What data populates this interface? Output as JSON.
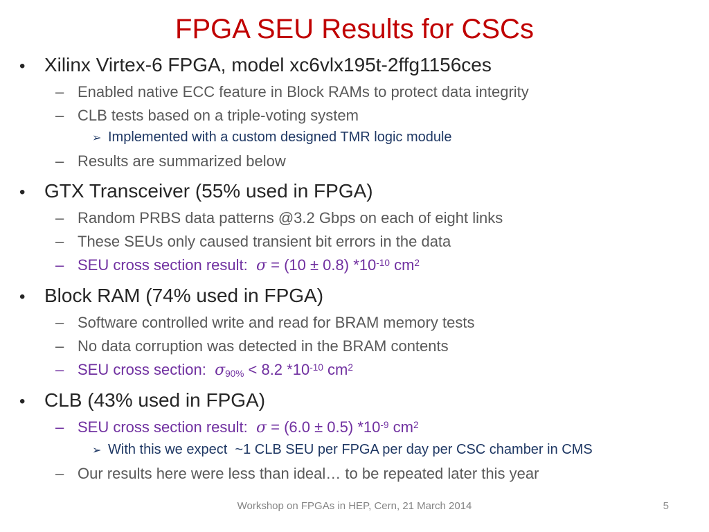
{
  "slide": {
    "title": "FPGA SEU Results for CSCs",
    "footer": {
      "text": "Workshop on FPGAs in HEP, Cern, 21 March 2014",
      "page_number": "5"
    },
    "colors": {
      "title": "#C00000",
      "level1_text": "#262626",
      "level2_text": "#595959",
      "level3_text": "#1F3864",
      "result_purple": "#7030A0",
      "footer_gray": "#848484"
    }
  },
  "markers": {
    "level1": "•",
    "level2": "–",
    "level3": "➢"
  },
  "content": {
    "section1": {
      "heading": "Xilinx Virtex-6 FPGA, model xc6vlx195t-2ffg1156ces",
      "item1": "Enabled native ECC feature in Block RAMs to protect data integrity",
      "item2": "CLB tests based on a triple-voting system",
      "sub1": "Implemented with a custom designed TMR logic module",
      "item3": "Results are summarized below"
    },
    "section2": {
      "heading": "GTX Transceiver (55% used in FPGA)",
      "item1": "Random PRBS data patterns @3.2 Gbps on each of eight links",
      "item2": "These SEUs only caused transient bit errors in the data",
      "result": {
        "label": "SEU cross section result:  ",
        "sigma": "σ",
        "rest": " = (10 ± 0.8) *10",
        "exp": "-10",
        "unit": " cm",
        "unit_exp": "2"
      }
    },
    "section3": {
      "heading": "Block RAM (74% used in FPGA)",
      "item1": "Software controlled write and read for BRAM memory tests",
      "item2": "No data corruption was detected in the BRAM contents",
      "result": {
        "label": "SEU cross section:  ",
        "sigma": "σ",
        "sigma_sub": "90%",
        "rest": " < 8.2 *10",
        "exp": "-10",
        "unit": " cm",
        "unit_exp": "2"
      }
    },
    "section4": {
      "heading": "CLB (43% used in FPGA)",
      "result": {
        "label": "SEU cross section result:  ",
        "sigma": "σ",
        "rest": " = (6.0 ± 0.5) *10",
        "exp": "-9",
        "unit": " cm",
        "unit_exp": "2"
      },
      "sub1": "With this we expect  ~1 CLB SEU per FPGA per day per CSC chamber in CMS",
      "item2": "Our results here were less than ideal… to be repeated later this year"
    }
  }
}
